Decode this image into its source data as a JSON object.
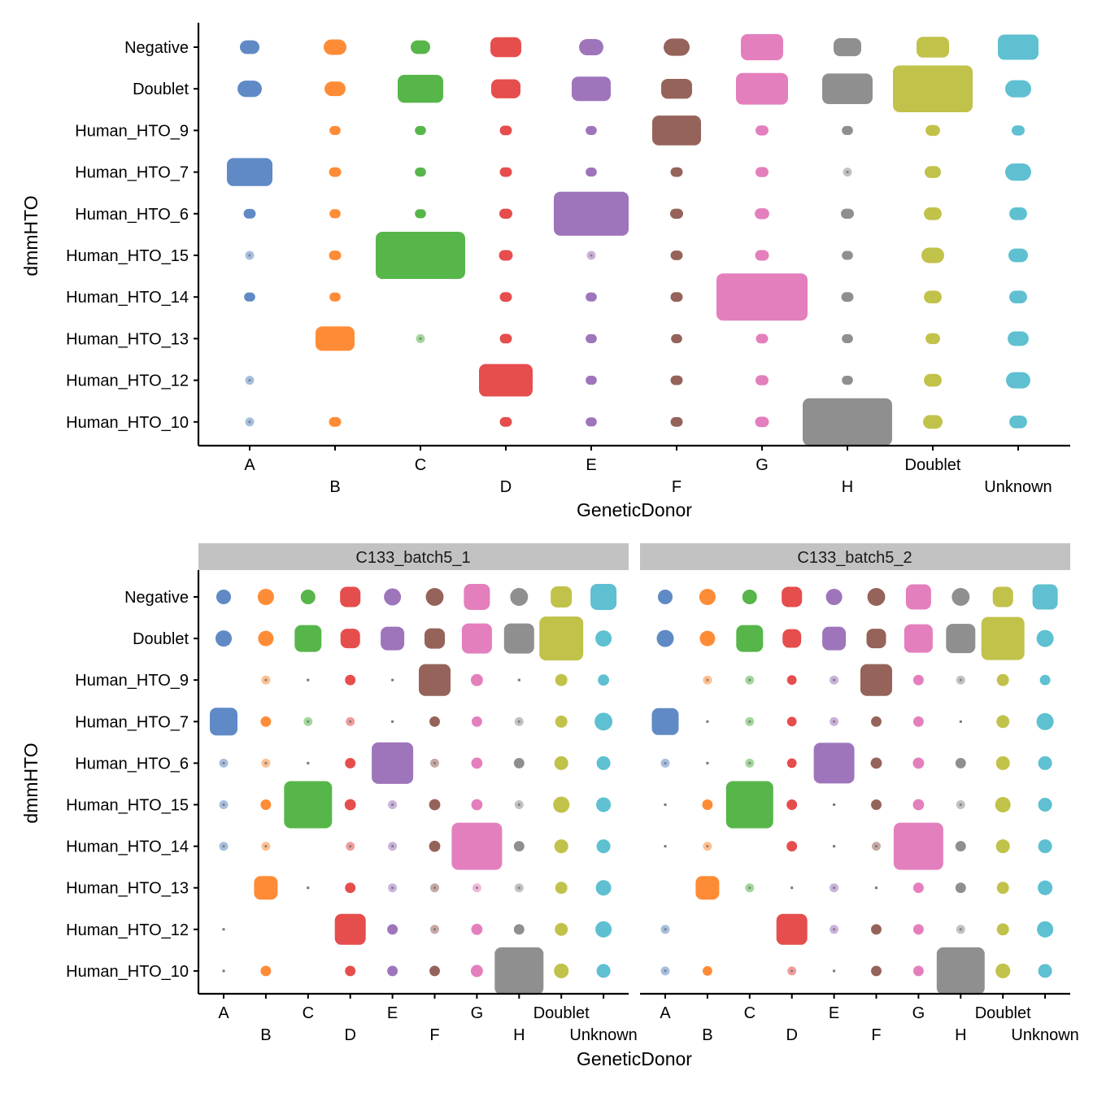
{
  "chart_data": [
    {
      "type": "scatter",
      "subtype": "jitter-count",
      "title": "",
      "xlabel": "GeneticDonor",
      "ylabel": "dmmHTO",
      "categories_x": [
        "A",
        "B",
        "C",
        "D",
        "E",
        "F",
        "G",
        "H",
        "Doublet",
        "Unknown"
      ],
      "categories_y": [
        "Negative",
        "Doublet",
        "Human_HTO_9",
        "Human_HTO_7",
        "Human_HTO_6",
        "Human_HTO_15",
        "Human_HTO_14",
        "Human_HTO_13",
        "Human_HTO_12",
        "Human_HTO_10"
      ],
      "colors": {
        "A": "#5f8ac5",
        "B": "#fe8c36",
        "C": "#57b64a",
        "D": "#e64d4d",
        "E": "#9e75bb",
        "F": "#95635a",
        "G": "#e47fbd",
        "H": "#8f8f8f",
        "Doublet": "#c1c24a",
        "Unknown": "#5ec0d0"
      },
      "panels": [
        {
          "strip": "",
          "counts_approx": [
            [
              16,
              25,
              16,
              56,
              30,
              36,
              121,
              42,
              64,
              110
            ],
            [
              30,
              20,
              144,
              49,
              100,
              56,
              196,
              182,
              506,
              36
            ],
            [
              null,
              2,
              2,
              3,
              2,
              169,
              4,
              2,
              6,
              4
            ],
            [
              144,
              3,
              2,
              3,
              2,
              3,
              4,
              1,
              9,
              36
            ],
            [
              3,
              2,
              2,
              4,
              441,
              4,
              6,
              4,
              12,
              12
            ],
            [
              1,
              3,
              650,
              5,
              1,
              3,
              5,
              2,
              25,
              16
            ],
            [
              2,
              2,
              null,
              3,
              2,
              3,
              716,
              3,
              12,
              12
            ],
            [
              null,
              100,
              1,
              3,
              2,
              2,
              3,
              2,
              6,
              20
            ],
            [
              1,
              null,
              null,
              210,
              2,
              3,
              4,
              2,
              12,
              30
            ],
            [
              1,
              3,
              null,
              3,
              2,
              3,
              5,
              650,
              16,
              12
            ]
          ]
        }
      ]
    },
    {
      "type": "scatter",
      "subtype": "jitter-count",
      "title": "",
      "xlabel": "GeneticDonor",
      "ylabel": "dmmHTO",
      "categories_x": [
        "A",
        "B",
        "C",
        "D",
        "E",
        "F",
        "G",
        "H",
        "Doublet",
        "Unknown"
      ],
      "categories_y": [
        "Negative",
        "Doublet",
        "Human_HTO_9",
        "Human_HTO_7",
        "Human_HTO_6",
        "Human_HTO_15",
        "Human_HTO_14",
        "Human_HTO_13",
        "Human_HTO_12",
        "Human_HTO_10"
      ],
      "panels": [
        {
          "strip": "C133_batch5_1",
          "counts_approx": [
            [
              21,
              30,
              21,
              60,
              35,
              40,
              119,
              40,
              67,
              119
            ],
            [
              30,
              25,
              129,
              53,
              91,
              60,
              174,
              174,
              437,
              30
            ],
            [
              null,
              1,
              0,
              5,
              0,
              199,
              10,
              0,
              10,
              7
            ],
            [
              140,
              5,
              1,
              1,
              0,
              5,
              5,
              1,
              10,
              40
            ],
            [
              1,
              1,
              0,
              5,
              382,
              1,
              7,
              5,
              17,
              17
            ],
            [
              1,
              5,
              537,
              7,
              1,
              7,
              7,
              1,
              30,
              21
            ],
            [
              1,
              1,
              null,
              1,
              1,
              7,
              602,
              5,
              17,
              17
            ],
            [
              null,
              91,
              0,
              5,
              1,
              1,
              1,
              1,
              10,
              25
            ],
            [
              0,
              null,
              null,
              186,
              5,
              1,
              7,
              5,
              13,
              30
            ],
            [
              0,
              5,
              null,
              5,
              5,
              5,
              10,
              559,
              21,
              17
            ]
          ]
        },
        {
          "strip": "C133_batch5_2",
          "counts_approx": [
            [
              21,
              30,
              21,
              60,
              30,
              40,
              109,
              40,
              60,
              109
            ],
            [
              35,
              25,
              129,
              46,
              91,
              53,
              151,
              162,
              418,
              35
            ],
            [
              null,
              1,
              1,
              3,
              1,
              199,
              5,
              1,
              10,
              5
            ],
            [
              129,
              0,
              1,
              3,
              1,
              5,
              5,
              0,
              13,
              35
            ],
            [
              1,
              0,
              1,
              3,
              364,
              7,
              7,
              5,
              17,
              17
            ],
            [
              0,
              5,
              517,
              5,
              0,
              5,
              7,
              1,
              25,
              17
            ],
            [
              0,
              1,
              null,
              5,
              0,
              1,
              580,
              5,
              17,
              17
            ],
            [
              null,
              91,
              1,
              0,
              1,
              0,
              5,
              5,
              10,
              21
            ],
            [
              1,
              null,
              null,
              186,
              1,
              5,
              5,
              1,
              10,
              30
            ],
            [
              1,
              3,
              null,
              1,
              0,
              5,
              5,
              537,
              21,
              17
            ]
          ]
        }
      ]
    }
  ]
}
